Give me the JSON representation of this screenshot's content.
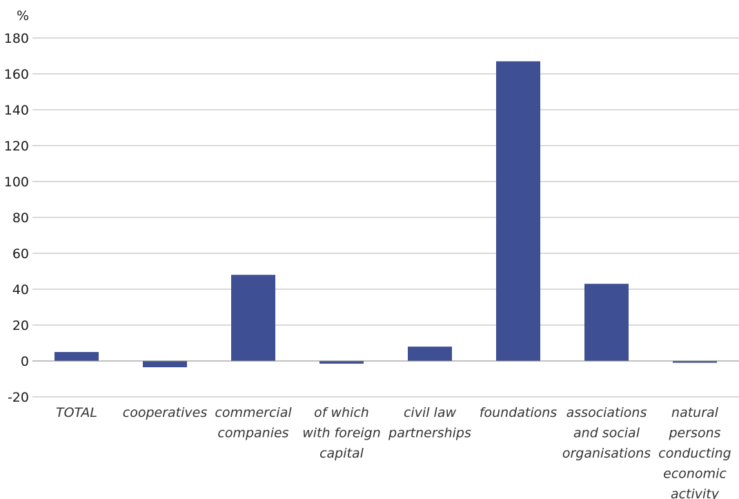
{
  "chart_data": {
    "type": "bar",
    "unit_label": "%",
    "categories": [
      [
        "TOTAL"
      ],
      [
        "cooperatives"
      ],
      [
        "commercial",
        "companies"
      ],
      [
        "of which",
        "with foreign",
        "capital"
      ],
      [
        "civil law",
        "partnerships"
      ],
      [
        "foundations"
      ],
      [
        "associations",
        "and social",
        "organisations"
      ],
      [
        "natural",
        "persons",
        "conducting",
        "economic",
        "activity"
      ]
    ],
    "values": [
      5,
      -3.5,
      48,
      -1.5,
      8,
      167,
      43,
      -1
    ],
    "ylim": [
      -20,
      180
    ],
    "yticks": [
      180,
      160,
      140,
      120,
      100,
      80,
      60,
      40,
      20,
      0,
      -20
    ],
    "grid": true,
    "colors": {
      "bar": "#3f4f93",
      "grid": "#b3b3b3",
      "axis": "#808080"
    }
  }
}
